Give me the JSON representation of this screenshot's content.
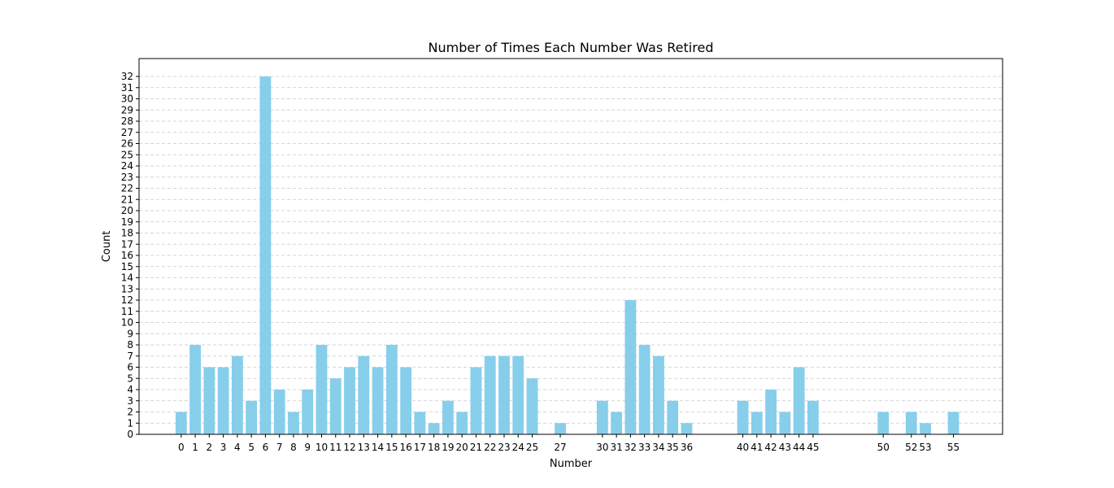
{
  "chart_data": {
    "type": "bar",
    "title": "Number of Times Each Number Was Retired",
    "xlabel": "Number",
    "ylabel": "Count",
    "bar_color": "#87CEEB",
    "grid": "y-dashed",
    "xlim": [
      -3,
      58.5
    ],
    "ylim": [
      0,
      33.6
    ],
    "x": [
      0,
      1,
      2,
      3,
      4,
      5,
      6,
      7,
      8,
      9,
      10,
      11,
      12,
      13,
      14,
      15,
      16,
      17,
      18,
      19,
      20,
      21,
      22,
      23,
      24,
      25,
      27,
      30,
      31,
      32,
      33,
      34,
      35,
      36,
      40,
      41,
      42,
      43,
      44,
      45,
      50,
      52,
      53,
      55
    ],
    "values": [
      2,
      8,
      6,
      6,
      7,
      3,
      32,
      4,
      2,
      4,
      8,
      5,
      6,
      7,
      6,
      8,
      6,
      2,
      1,
      3,
      2,
      6,
      7,
      7,
      7,
      5,
      1,
      3,
      2,
      12,
      8,
      7,
      3,
      1,
      3,
      2,
      4,
      2,
      6,
      3,
      2,
      2,
      1,
      2
    ],
    "yticks": [
      0,
      1,
      2,
      3,
      4,
      5,
      6,
      7,
      8,
      9,
      10,
      11,
      12,
      13,
      14,
      15,
      16,
      17,
      18,
      19,
      20,
      21,
      22,
      23,
      24,
      25,
      26,
      27,
      28,
      29,
      30,
      31,
      32
    ]
  }
}
